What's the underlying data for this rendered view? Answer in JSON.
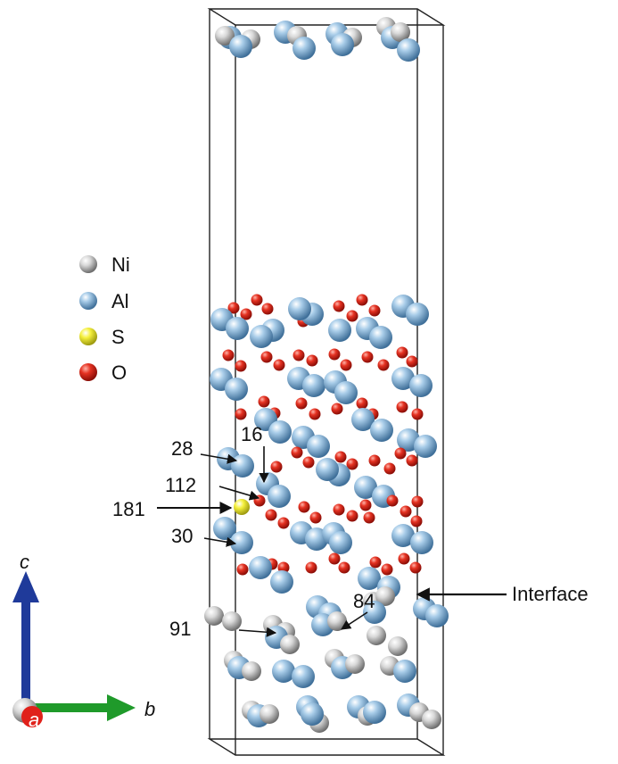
{
  "legend": [
    {
      "element": "Ni",
      "color": "#bdbdbd"
    },
    {
      "element": "Al",
      "color": "#86b3d9"
    },
    {
      "element": "S",
      "color": "#f1ee3a"
    },
    {
      "element": "O",
      "color": "#e0211a"
    }
  ],
  "annotations": {
    "a28": "28",
    "a16": "16",
    "a112": "112",
    "a181": "181",
    "a30": "30",
    "a84": "84",
    "a91": "91",
    "interface": "Interface"
  },
  "axes": {
    "c": "c",
    "b": "b",
    "a": "a"
  }
}
